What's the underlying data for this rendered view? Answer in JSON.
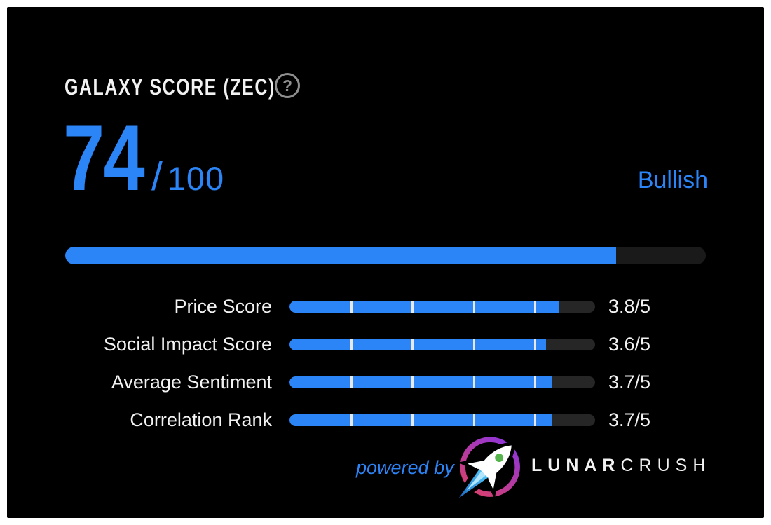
{
  "colors": {
    "accent": "#2C85F7",
    "text": "#F2F2F2",
    "track-main": "#1A1A1A",
    "track-row": "#262626",
    "tick": "#E8E8E8",
    "muted": "#8F8F8F",
    "page-bg": "#FFFFFF",
    "widget-bg": "#000000",
    "logo-purple": "#8E35DC",
    "logo-rose": "#D9406B",
    "flame-deep": "#1565C0",
    "flame-light": "#4FC3F7",
    "flame-core": "#B3E5FC",
    "window-green": "#56B44C"
  },
  "widget": {
    "title": "GALAXY SCORE (ZEC)",
    "help_label": "?",
    "score": "74",
    "slash": "/",
    "score_max": "100",
    "sentiment": "Bullish",
    "main_bar_fill_pct": 86
  },
  "metrics": [
    {
      "label": "Price Score",
      "value": "3.8/5",
      "fill_pct": 88
    },
    {
      "label": "Social Impact Score",
      "value": "3.6/5",
      "fill_pct": 84
    },
    {
      "label": "Average Sentiment",
      "value": "3.7/5",
      "fill_pct": 86
    },
    {
      "label": "Correlation Rank",
      "value": "3.7/5",
      "fill_pct": 86
    }
  ],
  "footer": {
    "powered_by": "powered by",
    "brand_bold": "LUNAR",
    "brand_light": "CRUSH",
    "logo": "rocket-icon"
  },
  "chart_data": {
    "type": "bar",
    "title": "GALAXY SCORE (ZEC)",
    "summary": {
      "value": 74,
      "max": 100,
      "sentiment": "Bullish"
    },
    "categories": [
      "Price Score",
      "Social Impact Score",
      "Average Sentiment",
      "Correlation Rank"
    ],
    "values": [
      3.8,
      3.6,
      3.7,
      3.7
    ],
    "value_max": 5,
    "legend": false,
    "grid": false,
    "orientation": "horizontal"
  }
}
